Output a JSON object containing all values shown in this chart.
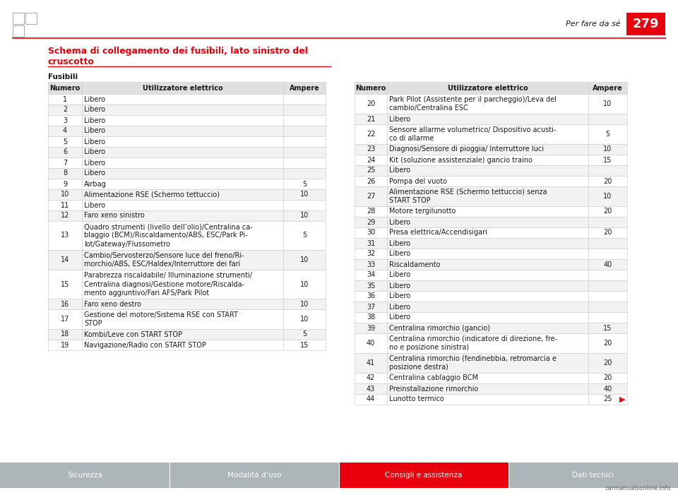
{
  "page_header_text": "Per fare da sé",
  "page_number": "279",
  "section_title_line1": "Schema di collegamento dei fusibili, lato sinistro del",
  "section_title_line2": "cruscotto",
  "fusibili_label": "Fusibili",
  "col_headers": [
    "Numero",
    "Utilizzatore elettrico",
    "Ampere"
  ],
  "left_table": [
    [
      "1",
      "Libero",
      ""
    ],
    [
      "2",
      "Libero",
      ""
    ],
    [
      "3",
      "Libero",
      ""
    ],
    [
      "4",
      "Libero",
      ""
    ],
    [
      "5",
      "Libero",
      ""
    ],
    [
      "6",
      "Libero",
      ""
    ],
    [
      "7",
      "Libero",
      ""
    ],
    [
      "8",
      "Libero",
      ""
    ],
    [
      "9",
      "Airbag",
      "5"
    ],
    [
      "10",
      "Alimentazione RSE (Schermo tettuccio)",
      "10"
    ],
    [
      "11",
      "Libero",
      ""
    ],
    [
      "12",
      "Faro xeno sinistro",
      "10"
    ],
    [
      "13",
      "Quadro strumenti (livello dell’olio)/Centralina ca-\nblaggio (BCM)/Riscaldamento/ABS, ESC/Park Pi-\nlot/Gateway/Flussometro",
      "5"
    ],
    [
      "14",
      "Cambio/Servosterzo/Sensore luce del freno/Ri-\nmorchio/ABS, ESC/Haldex/Interruttore dei fari",
      "10"
    ],
    [
      "15",
      "Parabrezza riscaldabile/ Illuminazione strumenti/\nCentralina diagnosi/Gestione motore/Riscalda-\nmento aggiuntivo/Fari AFS/Park Pilot",
      "10"
    ],
    [
      "16",
      "Faro xeno destro",
      "10"
    ],
    [
      "17",
      "Gestione del motore/Sistema RSE con START\nSTOP",
      "10"
    ],
    [
      "18",
      "Kombi/Leve con START STOP",
      "5"
    ],
    [
      "19",
      "Navigazione/Radio con START STOP",
      "15"
    ]
  ],
  "right_table": [
    [
      "20",
      "Park Pilot (Assistente per il parcheggio)/Leva del\ncambio/Centralina ESC",
      "10"
    ],
    [
      "21",
      "Libero",
      ""
    ],
    [
      "22",
      "Sensore allarme volumetrico/ Dispositivo acusti-\nco di allarme",
      "5"
    ],
    [
      "23",
      "Diagnosi/Sensore di pioggia/ Interruttore luci",
      "10"
    ],
    [
      "24",
      "Kit (soluzione assistenziale) gancio traino",
      "15"
    ],
    [
      "25",
      "Libero",
      ""
    ],
    [
      "26",
      "Pompa del vuoto",
      "20"
    ],
    [
      "27",
      "Alimentazione RSE (Schermo tettuccio) senza\nSTART STOP",
      "10"
    ],
    [
      "28",
      "Motore tergilunotto",
      "20"
    ],
    [
      "29",
      "Libero",
      ""
    ],
    [
      "30",
      "Presa elettrica/Accendisigari",
      "20"
    ],
    [
      "31",
      "Libero",
      ""
    ],
    [
      "32",
      "Libero",
      ""
    ],
    [
      "33",
      "Riscaldamento",
      "40"
    ],
    [
      "34",
      "Libero",
      ""
    ],
    [
      "35",
      "Libero",
      ""
    ],
    [
      "36",
      "Libero",
      ""
    ],
    [
      "37",
      "Libero",
      ""
    ],
    [
      "38",
      "Libero",
      ""
    ],
    [
      "39",
      "Centralina rimorchio (gancio)",
      "15"
    ],
    [
      "40",
      "Centralina rimorchio (indicatore di direzione, fre-\nno e posizione sinistra)",
      "20"
    ],
    [
      "41",
      "Centralina rimorchio (fendinebbia, retromarcia e\nposizione destra)",
      "20"
    ],
    [
      "42",
      "Centralina cablaggio BCM",
      "20"
    ],
    [
      "43",
      "Preinstallazione rimorchio",
      "40"
    ],
    [
      "44",
      "Lunotto termico",
      "25"
    ]
  ],
  "footer_tabs": [
    {
      "text": "Sicurezza",
      "color": "#adb5b8",
      "text_color": "#ffffff"
    },
    {
      "text": "Modalità d’uso",
      "color": "#adb5b8",
      "text_color": "#ffffff"
    },
    {
      "text": "Consigli e assistenza",
      "color": "#e8000d",
      "text_color": "#ffffff"
    },
    {
      "text": "Dati tecnici",
      "color": "#adb5b8",
      "text_color": "#ffffff"
    }
  ],
  "red": "#e8000d",
  "white": "#ffffff",
  "black": "#1a1a1a",
  "hdr_bg": "#e0e0e0",
  "row_even": "#f2f2f2",
  "row_odd": "#ffffff",
  "border": "#c8c8c8"
}
